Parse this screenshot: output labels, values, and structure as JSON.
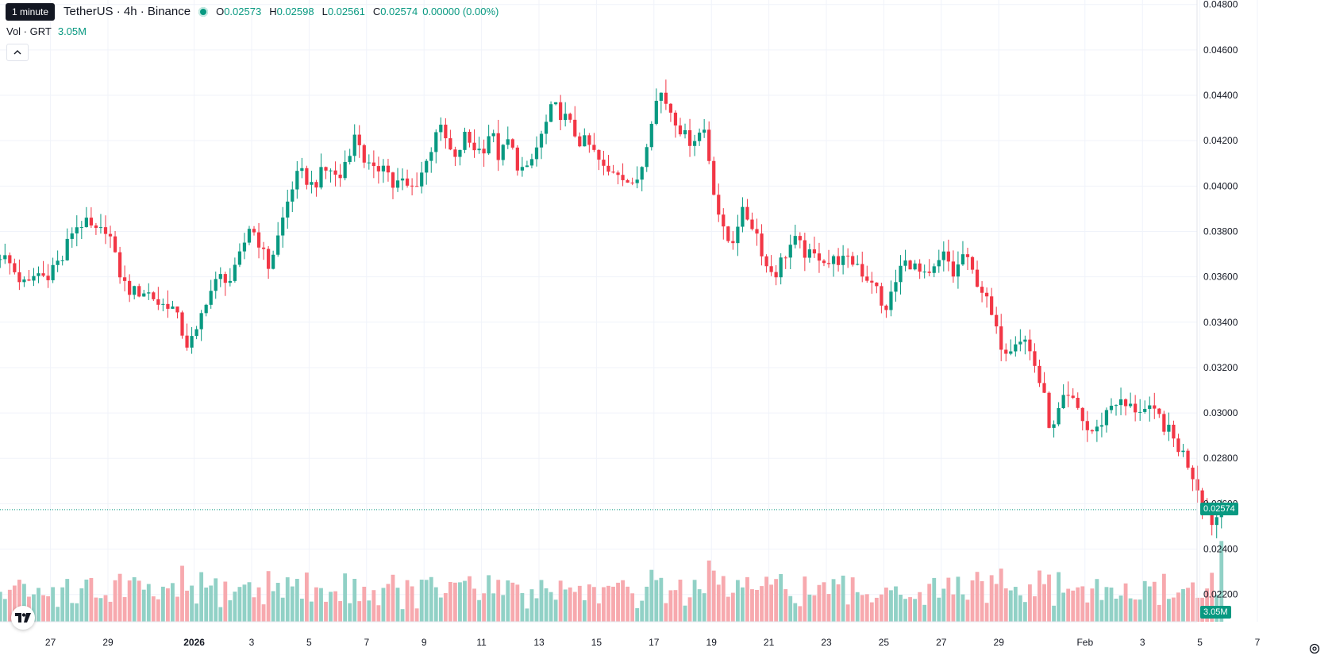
{
  "tooltip": {
    "text": "1 minute"
  },
  "header": {
    "title": "TetherUS · 4h · Binance",
    "ohlc": {
      "o_label": "O",
      "o": "0.02573",
      "h_label": "H",
      "h": "0.02598",
      "l_label": "L",
      "l": "0.02561",
      "c_label": "C",
      "c": "0.02574",
      "change": "0.00000 (0.00%)"
    },
    "volume_label": "Vol · GRT",
    "volume_value": "3.05M"
  },
  "last_price_tag": "0.02574",
  "volume_tag": "3.05M",
  "colors": {
    "up": "#089981",
    "down": "#f23645",
    "up_vol": "#91d1c6",
    "down_vol": "#f7a9ae",
    "grid": "#f0f3fa",
    "text": "#131722"
  },
  "chart_data": {
    "type": "candlestick",
    "y_axis": {
      "min": 0.0208,
      "max": 0.0482,
      "ticks": [
        "0.02200",
        "0.02400",
        "0.02600",
        "0.02800",
        "0.03000",
        "0.03200",
        "0.03400",
        "0.03600",
        "0.03800",
        "0.04000",
        "0.04200",
        "0.04400",
        "0.04600",
        "0.04800"
      ]
    },
    "x_axis": {
      "ticks": [
        {
          "label": "27",
          "day": -4
        },
        {
          "label": "29",
          "day": -2
        },
        {
          "label": "2026",
          "day": 1,
          "bold": true
        },
        {
          "label": "3",
          "day": 3
        },
        {
          "label": "5",
          "day": 5
        },
        {
          "label": "7",
          "day": 7
        },
        {
          "label": "9",
          "day": 9
        },
        {
          "label": "11",
          "day": 11
        },
        {
          "label": "13",
          "day": 13
        },
        {
          "label": "15",
          "day": 15
        },
        {
          "label": "17",
          "day": 17
        },
        {
          "label": "19",
          "day": 19
        },
        {
          "label": "21",
          "day": 21
        },
        {
          "label": "23",
          "day": 23
        },
        {
          "label": "25",
          "day": 25
        },
        {
          "label": "27",
          "day": 27
        },
        {
          "label": "29",
          "day": 29
        },
        {
          "label": "Feb",
          "day": 32
        },
        {
          "label": "3",
          "day": 34
        },
        {
          "label": "5",
          "day": 36
        },
        {
          "label": "7",
          "day": 38
        }
      ]
    },
    "last_price": 0.02574,
    "candles_per_day": 6,
    "start_day": -5.75,
    "anchor_closes": [
      0.037,
      0.0366,
      0.036,
      0.0355,
      0.0362,
      0.036,
      0.0365,
      0.0368,
      0.038,
      0.0384,
      0.0382,
      0.0378,
      0.0383,
      0.0366,
      0.0356,
      0.0353,
      0.0354,
      0.0352,
      0.0347,
      0.0349,
      0.034,
      0.033,
      0.0334,
      0.035,
      0.0356,
      0.0361,
      0.0358,
      0.037,
      0.0383,
      0.0376,
      0.0364,
      0.0375,
      0.039,
      0.0403,
      0.0405,
      0.04,
      0.0405,
      0.0408,
      0.0402,
      0.0415,
      0.0423,
      0.041,
      0.0405,
      0.0412,
      0.04,
      0.0402,
      0.0398,
      0.0404,
      0.0412,
      0.0427,
      0.042,
      0.041,
      0.0422,
      0.0418,
      0.0415,
      0.0425,
      0.0412,
      0.042,
      0.041,
      0.0405,
      0.0415,
      0.0425,
      0.0435,
      0.0432,
      0.0426,
      0.042,
      0.0418,
      0.0412,
      0.0405,
      0.0408,
      0.0405,
      0.0398,
      0.041,
      0.043,
      0.0442,
      0.0435,
      0.0428,
      0.042,
      0.0422,
      0.0425,
      0.04,
      0.038,
      0.0374,
      0.0388,
      0.0386,
      0.0378,
      0.0364,
      0.0362,
      0.037,
      0.0376,
      0.0372,
      0.0368,
      0.037,
      0.0366,
      0.0368,
      0.0366,
      0.0367,
      0.036,
      0.0359,
      0.0344,
      0.0352,
      0.0364,
      0.0367,
      0.0362,
      0.0358,
      0.0364,
      0.037,
      0.036,
      0.037,
      0.0362,
      0.0356,
      0.0345,
      0.0332,
      0.0328,
      0.0334,
      0.0332,
      0.0322,
      0.0308,
      0.029,
      0.0304,
      0.0306,
      0.0301,
      0.0292,
      0.0292,
      0.03,
      0.0306,
      0.0303,
      0.0302,
      0.0302,
      0.03,
      0.0298,
      0.0292,
      0.0286,
      0.028,
      0.0271,
      0.026,
      0.0252,
      0.0257
    ],
    "volume_max": 4.2,
    "last_volume": 3.05
  }
}
